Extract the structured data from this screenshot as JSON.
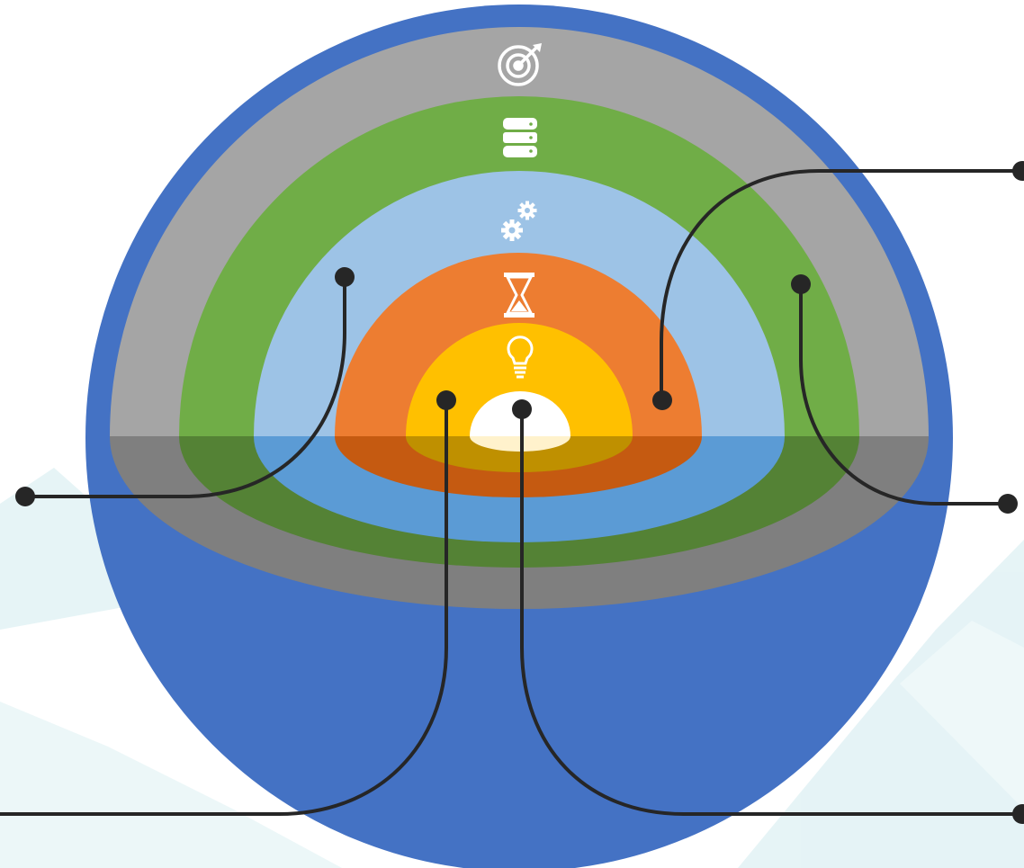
{
  "diagram": {
    "layers": [
      {
        "name": "outer-sphere",
        "color": "#4472C4"
      },
      {
        "name": "gray-layer",
        "color": "#A5A5A5",
        "icon": "target-icon"
      },
      {
        "name": "green-layer",
        "color": "#70AD47",
        "icon": "database-icon"
      },
      {
        "name": "light-blue-layer",
        "color": "#9DC3E6",
        "icon": "gears-icon"
      },
      {
        "name": "orange-layer",
        "color": "#ED7D31",
        "icon": "hourglass-icon"
      },
      {
        "name": "yellow-layer",
        "color": "#FFC000",
        "icon": "lightbulb-icon"
      },
      {
        "name": "white-core",
        "color": "#FFFFFF"
      }
    ],
    "lower_shades": {
      "gray": "#7F7F7F",
      "green": "#548235",
      "light_blue": "#5B9BD5",
      "orange": "#C55A11",
      "yellow": "#BF9000",
      "core": "#FFF2CC"
    },
    "connector_color": "#262626",
    "background_tint": "#DDF0F3"
  }
}
